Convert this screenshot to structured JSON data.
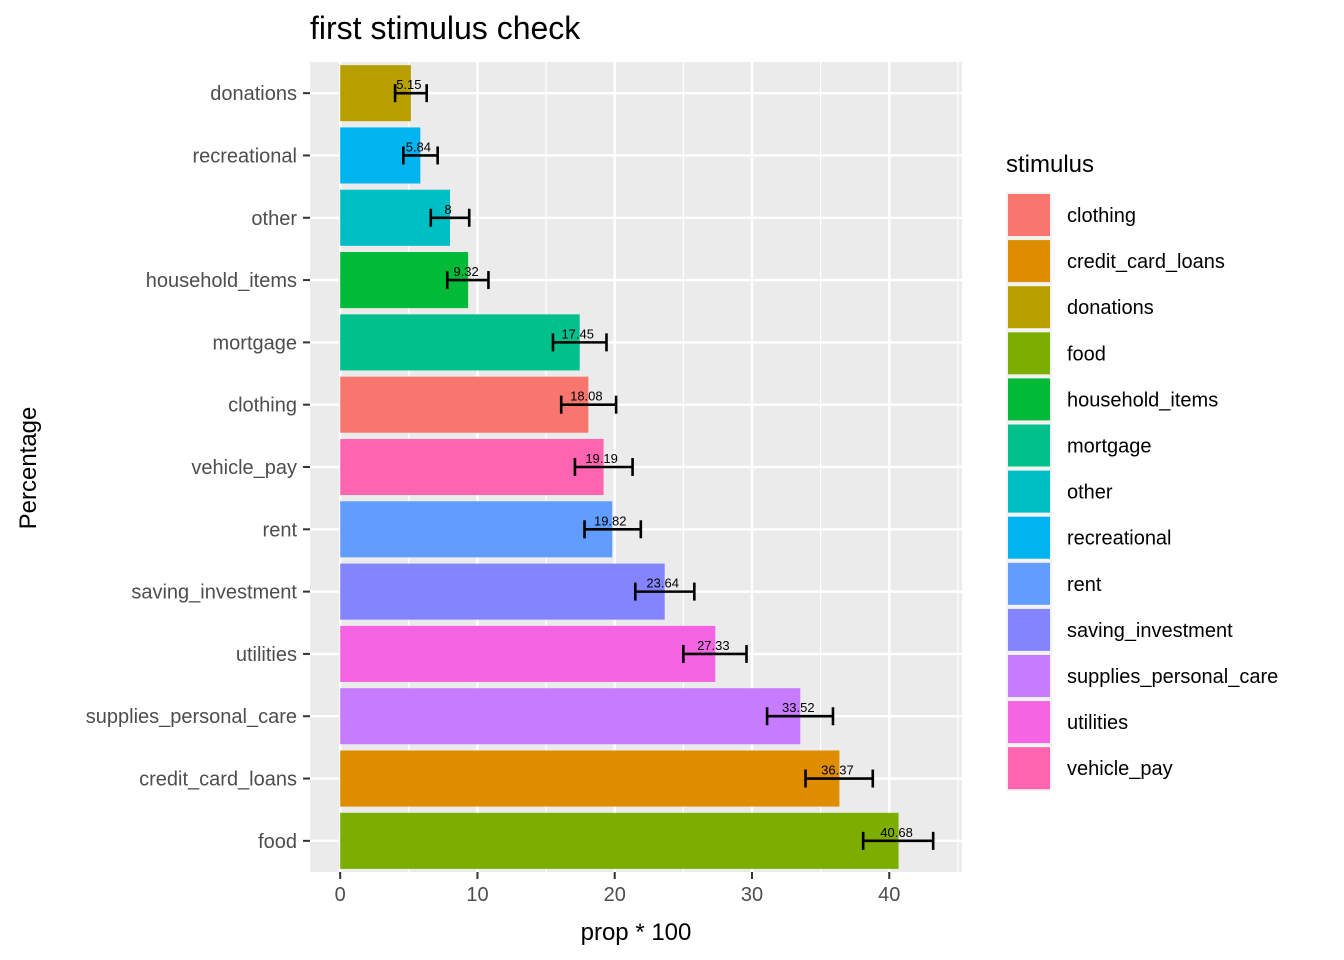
{
  "chart_data": {
    "type": "bar",
    "orientation": "horizontal",
    "title": "first stimulus check",
    "xlabel": "prop * 100",
    "ylabel": "Percentage",
    "xlim": [
      -2.2,
      45.3
    ],
    "x_ticks": [
      0,
      10,
      20,
      30,
      40
    ],
    "grid": true,
    "legend_title": "stimulus",
    "legend_position": "right",
    "categories": [
      "donations",
      "recreational",
      "other",
      "household_items",
      "mortgage",
      "clothing",
      "vehicle_pay",
      "rent",
      "saving_investment",
      "utilities",
      "supplies_personal_care",
      "credit_card_loans",
      "food"
    ],
    "values": [
      5.15,
      5.84,
      8,
      9.32,
      17.45,
      18.08,
      19.19,
      19.82,
      23.64,
      27.33,
      33.52,
      36.37,
      40.68
    ],
    "value_labels": [
      "5.15",
      "5.84",
      "8",
      "9.32",
      "17.45",
      "18.08",
      "19.19",
      "19.82",
      "23.64",
      "27.33",
      "33.52",
      "36.37",
      "40.68"
    ],
    "error_low": [
      4.0,
      4.6,
      6.6,
      7.8,
      15.5,
      16.1,
      17.1,
      17.8,
      21.5,
      25.0,
      31.1,
      33.9,
      38.1
    ],
    "error_high": [
      6.3,
      7.1,
      9.4,
      10.8,
      19.4,
      20.1,
      21.3,
      21.9,
      25.8,
      29.6,
      35.9,
      38.8,
      43.2
    ],
    "legend": [
      {
        "name": "clothing",
        "color": "#F8766D"
      },
      {
        "name": "credit_card_loans",
        "color": "#DE8C00"
      },
      {
        "name": "donations",
        "color": "#B79F00"
      },
      {
        "name": "food",
        "color": "#7CAE00"
      },
      {
        "name": "household_items",
        "color": "#00BA38"
      },
      {
        "name": "mortgage",
        "color": "#00C08B"
      },
      {
        "name": "other",
        "color": "#00BFC4"
      },
      {
        "name": "recreational",
        "color": "#00B4F0"
      },
      {
        "name": "rent",
        "color": "#619CFF"
      },
      {
        "name": "saving_investment",
        "color": "#8484FF"
      },
      {
        "name": "supplies_personal_care",
        "color": "#C77CFF"
      },
      {
        "name": "utilities",
        "color": "#F564E3"
      },
      {
        "name": "vehicle_pay",
        "color": "#FF64B0"
      }
    ],
    "colors": {
      "panel_background": "#EBEBEB",
      "grid": "#FFFFFF",
      "error_bar": "#000000"
    }
  }
}
